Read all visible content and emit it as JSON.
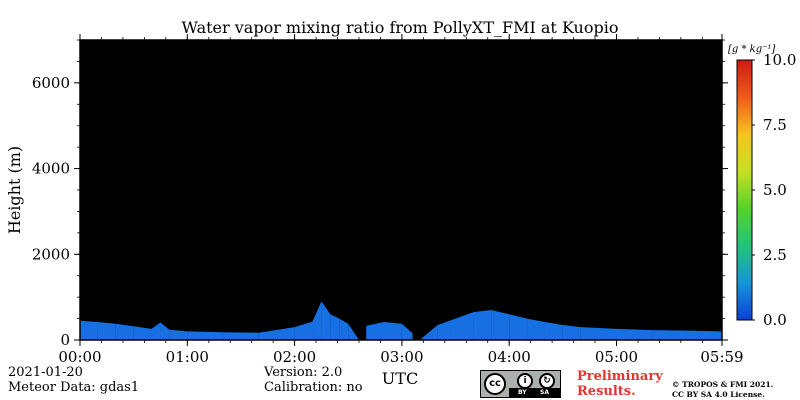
{
  "chart_data": {
    "type": "heatmap",
    "title": "Water vapor mixing ratio from PollyXT_FMI at Kuopio",
    "xlabel": "UTC",
    "ylabel": "Height (m)",
    "xlim": [
      "00:00",
      "05:59"
    ],
    "ylim": [
      0,
      7000
    ],
    "x_ticks": [
      "00:00",
      "01:00",
      "02:00",
      "03:00",
      "04:00",
      "05:00",
      "05:59"
    ],
    "y_ticks": [
      "0",
      "2000",
      "4000",
      "6000"
    ],
    "background_color": "#000000",
    "colorbar": {
      "label": "[g * kg⁻¹]",
      "range": [
        0.0,
        10.0
      ],
      "ticks": [
        "0.0",
        "2.5",
        "5.0",
        "7.5",
        "10.0"
      ],
      "colors": [
        "#0a3fd6",
        "#1696d8",
        "#23c47a",
        "#56d12a",
        "#c6e020",
        "#f6c41e",
        "#ef5a1a",
        "#d01a12"
      ]
    },
    "data_top_profile": {
      "description_units": "x in minutes after 00:00 UTC, y = top height of non-zero signal in m",
      "x": [
        0,
        10,
        20,
        30,
        40,
        45,
        50,
        60,
        80,
        100,
        120,
        130,
        135,
        140,
        145,
        150,
        156,
        160,
        170,
        180,
        190,
        200,
        210,
        220,
        230,
        240,
        250,
        260,
        270,
        280,
        300,
        320,
        340,
        359
      ],
      "y": [
        450,
        420,
        380,
        320,
        260,
        410,
        240,
        200,
        180,
        170,
        300,
        430,
        900,
        600,
        500,
        380,
        0,
        330,
        420,
        380,
        0,
        350,
        500,
        650,
        700,
        600,
        500,
        420,
        350,
        300,
        260,
        230,
        220,
        200
      ]
    },
    "value_range_observed": [
      0.5,
      2.5
    ]
  },
  "footer": {
    "date": "2021-01-20",
    "meteor": "Meteor Data: gdas1",
    "version": "Version: 2.0",
    "calibration": "Calibration: no",
    "preliminary_1": "Preliminary",
    "preliminary_2": "Results.",
    "copyright_1": "© TROPOS & FMI 2021.",
    "copyright_2": "CC BY SA 4.0 License."
  },
  "license_badge": {
    "cc": "cc",
    "by": "BY",
    "sa": "SA"
  }
}
